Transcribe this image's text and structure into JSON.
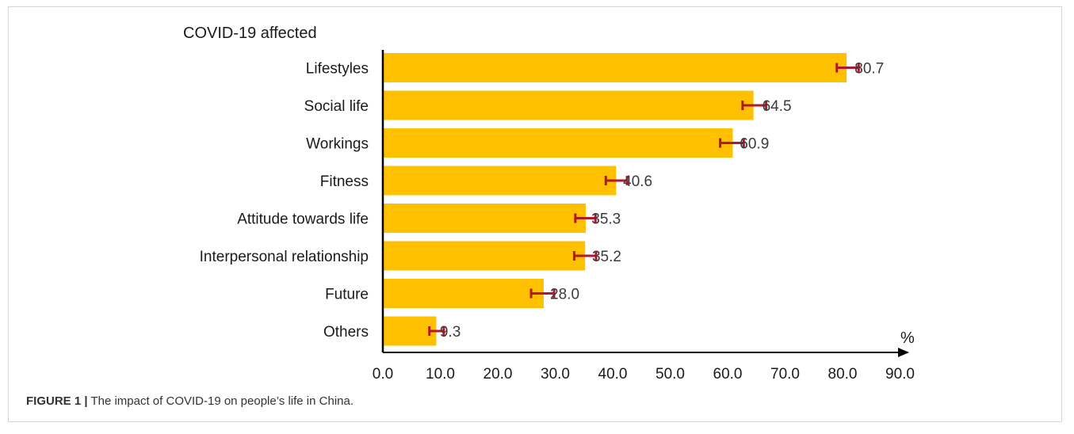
{
  "chart_data": {
    "type": "bar",
    "orientation": "horizontal",
    "title": "COVID-19 affected",
    "unit_label": "%",
    "categories": [
      "Lifestyles",
      "Social life",
      "Workings",
      "Fitness",
      "Attitude towards life",
      "Interpersonal relationship",
      "Future",
      "Others"
    ],
    "values": [
      80.7,
      64.5,
      60.9,
      40.6,
      35.3,
      35.2,
      28.0,
      9.3
    ],
    "value_labels": [
      "80.7",
      "64.5",
      "60.9",
      "40.6",
      "35.3",
      "35.2",
      "28.0",
      "9.3"
    ],
    "error_ranges": [
      [
        79.0,
        82.8
      ],
      [
        62.6,
        66.7
      ],
      [
        58.7,
        62.8
      ],
      [
        38.8,
        42.5
      ],
      [
        33.5,
        37.0
      ],
      [
        33.3,
        37.1
      ],
      [
        25.8,
        29.8
      ],
      [
        8.1,
        10.6
      ]
    ],
    "xlim": [
      0,
      90
    ],
    "x_ticks": [
      "0.0",
      "10.0",
      "20.0",
      "30.0",
      "40.0",
      "50.0",
      "60.0",
      "70.0",
      "80.0",
      "90.0"
    ],
    "bar_color": "#FFC000",
    "error_color": "#B0182B",
    "legend": "none",
    "grid": false
  },
  "caption": {
    "label": "FIGURE 1 |",
    "text": " The impact of COVID-19 on people’s life in China."
  }
}
